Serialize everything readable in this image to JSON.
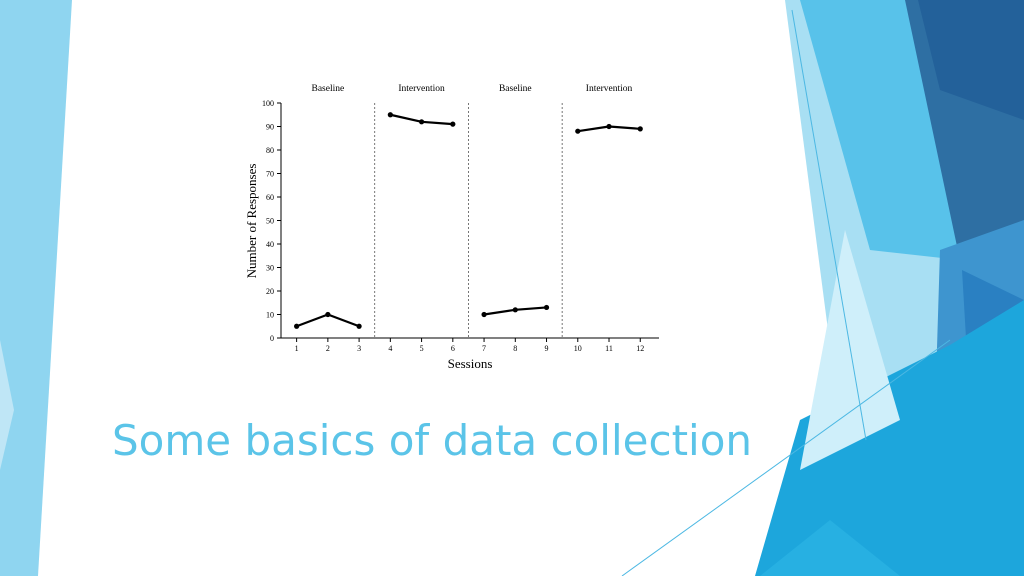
{
  "slide": {
    "title": "Some basics of data collection",
    "accent_color": "#5BC4E8"
  },
  "chart_data": {
    "type": "line",
    "xlabel": "Sessions",
    "ylabel": "Number of Responses",
    "ylim": [
      0,
      100
    ],
    "yticks": [
      0,
      10,
      20,
      30,
      40,
      50,
      60,
      70,
      80,
      90,
      100
    ],
    "xticks": [
      1,
      2,
      3,
      4,
      5,
      6,
      7,
      8,
      9,
      10,
      11,
      12
    ],
    "phase_lines_after_session": [
      3.5,
      6.5,
      9.5
    ],
    "grid": false,
    "phases": [
      {
        "label": "Baseline",
        "x": [
          1,
          2,
          3
        ],
        "y": [
          5,
          10,
          5
        ]
      },
      {
        "label": "Intervention",
        "x": [
          4,
          5,
          6
        ],
        "y": [
          95,
          92,
          91
        ]
      },
      {
        "label": "Baseline",
        "x": [
          7,
          8,
          9
        ],
        "y": [
          10,
          12,
          13
        ]
      },
      {
        "label": "Intervention",
        "x": [
          10,
          11,
          12
        ],
        "y": [
          88,
          90,
          89
        ]
      }
    ]
  }
}
